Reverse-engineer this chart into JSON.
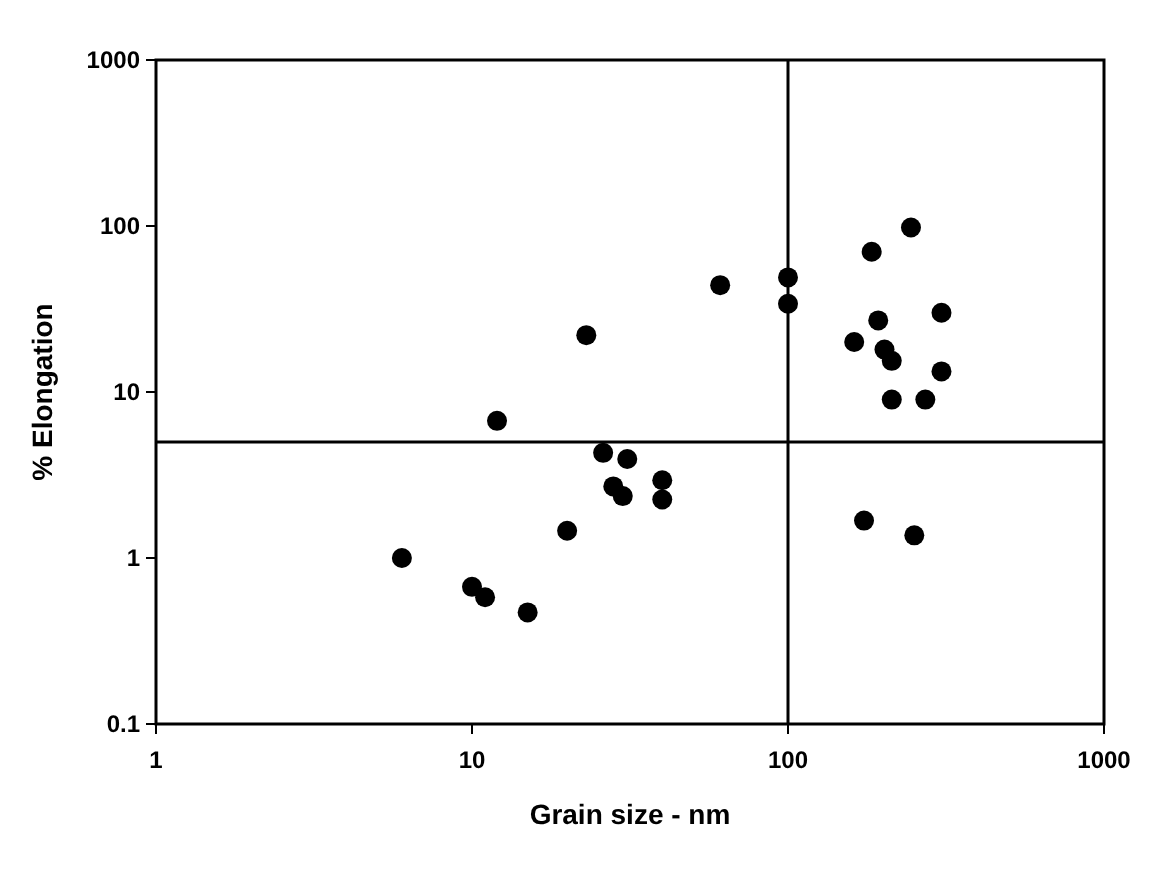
{
  "chart_data": {
    "type": "scatter",
    "xlabel": "Grain size - nm",
    "ylabel": "% Elongation",
    "log": "xy",
    "xlim": [
      1,
      1000
    ],
    "xticks": [
      1,
      10,
      100,
      1000
    ],
    "ylim": [
      0.1,
      1000
    ],
    "yticks": [
      0.1,
      1,
      10,
      100,
      1000
    ],
    "grid": false,
    "marker": "circle",
    "ref_lines": [
      {
        "axis": "x",
        "value": 100,
        "color": "#000000"
      },
      {
        "axis": "y",
        "value": 5,
        "color": "#000000"
      }
    ],
    "series": [
      {
        "color": "#000000",
        "x": [
          6,
          10,
          11,
          15,
          12,
          20,
          23,
          61,
          100,
          100,
          184,
          245,
          193,
          162,
          202,
          213,
          306,
          306,
          213,
          272,
          174,
          251,
          26,
          31,
          28,
          30,
          40,
          40
        ],
        "values": [
          1,
          0.67,
          0.58,
          0.47,
          6.7,
          1.46,
          22,
          44,
          49,
          34,
          70,
          98,
          27,
          20,
          18,
          15.4,
          30,
          13.3,
          9,
          9,
          1.68,
          1.37,
          4.3,
          3.95,
          2.7,
          2.36,
          2.94,
          2.25
        ]
      }
    ]
  }
}
